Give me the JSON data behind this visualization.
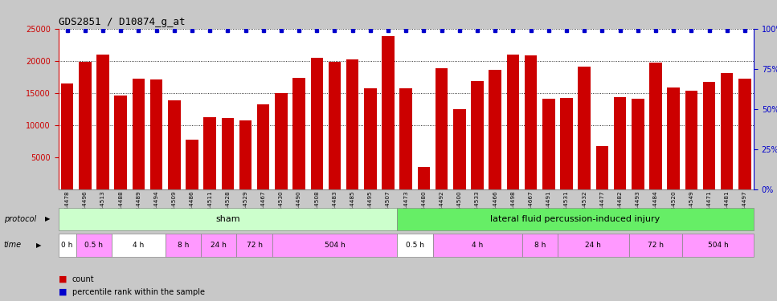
{
  "title": "GDS2851 / D10874_g_at",
  "samples": [
    "GSM44478",
    "GSM44496",
    "GSM44513",
    "GSM44488",
    "GSM44489",
    "GSM44494",
    "GSM44509",
    "GSM44486",
    "GSM44511",
    "GSM44528",
    "GSM44529",
    "GSM44467",
    "GSM44530",
    "GSM44490",
    "GSM44508",
    "GSM44483",
    "GSM44485",
    "GSM44495",
    "GSM44507",
    "GSM44473",
    "GSM44480",
    "GSM44492",
    "GSM44500",
    "GSM44533",
    "GSM44466",
    "GSM44498",
    "GSM44667",
    "GSM44491",
    "GSM44531",
    "GSM44532",
    "GSM44477",
    "GSM44482",
    "GSM44493",
    "GSM44484",
    "GSM44520",
    "GSM44549",
    "GSM44471",
    "GSM44481",
    "GSM44497"
  ],
  "counts": [
    16500,
    19800,
    21000,
    14600,
    17200,
    17100,
    13900,
    7800,
    11200,
    11100,
    10700,
    13300,
    15000,
    17300,
    20500,
    19800,
    20200,
    15700,
    23800,
    15700,
    3500,
    18900,
    12500,
    16900,
    18600,
    21000,
    20900,
    14100,
    14200,
    19100,
    6700,
    14400,
    14100,
    19700,
    15800,
    15300,
    16700,
    18100,
    17200
  ],
  "bar_color": "#cc0000",
  "dot_color": "#0000cc",
  "ylim": [
    0,
    25000
  ],
  "yticks_left": [
    5000,
    10000,
    15000,
    20000,
    25000
  ],
  "yticks_right": [
    0,
    25,
    50,
    75,
    100
  ],
  "protocol_sham_label": "sham",
  "protocol_injury_label": "lateral fluid percussion-induced injury",
  "protocol_sham_color": "#ccffcc",
  "protocol_injury_color": "#66ee66",
  "time_color_white": "#ffffff",
  "time_color_pink": "#ff99ff",
  "sham_count": 19,
  "sham_time_groups": [
    {
      "label": "0 h",
      "count": 1,
      "color": "#ffffff"
    },
    {
      "label": "0.5 h",
      "count": 2,
      "color": "#ff99ff"
    },
    {
      "label": "4 h",
      "count": 3,
      "color": "#ffffff"
    },
    {
      "label": "8 h",
      "count": 2,
      "color": "#ff99ff"
    },
    {
      "label": "24 h",
      "count": 2,
      "color": "#ff99ff"
    },
    {
      "label": "72 h",
      "count": 2,
      "color": "#ff99ff"
    },
    {
      "label": "504 h",
      "count": 7,
      "color": "#ff99ff"
    }
  ],
  "injury_time_groups": [
    {
      "label": "0.5 h",
      "count": 2,
      "color": "#ffffff"
    },
    {
      "label": "4 h",
      "count": 5,
      "color": "#ff99ff"
    },
    {
      "label": "8 h",
      "count": 2,
      "color": "#ff99ff"
    },
    {
      "label": "24 h",
      "count": 4,
      "color": "#ff99ff"
    },
    {
      "label": "72 h",
      "count": 3,
      "color": "#ff99ff"
    },
    {
      "label": "504 h",
      "count": 4,
      "color": "#ff99ff"
    }
  ]
}
